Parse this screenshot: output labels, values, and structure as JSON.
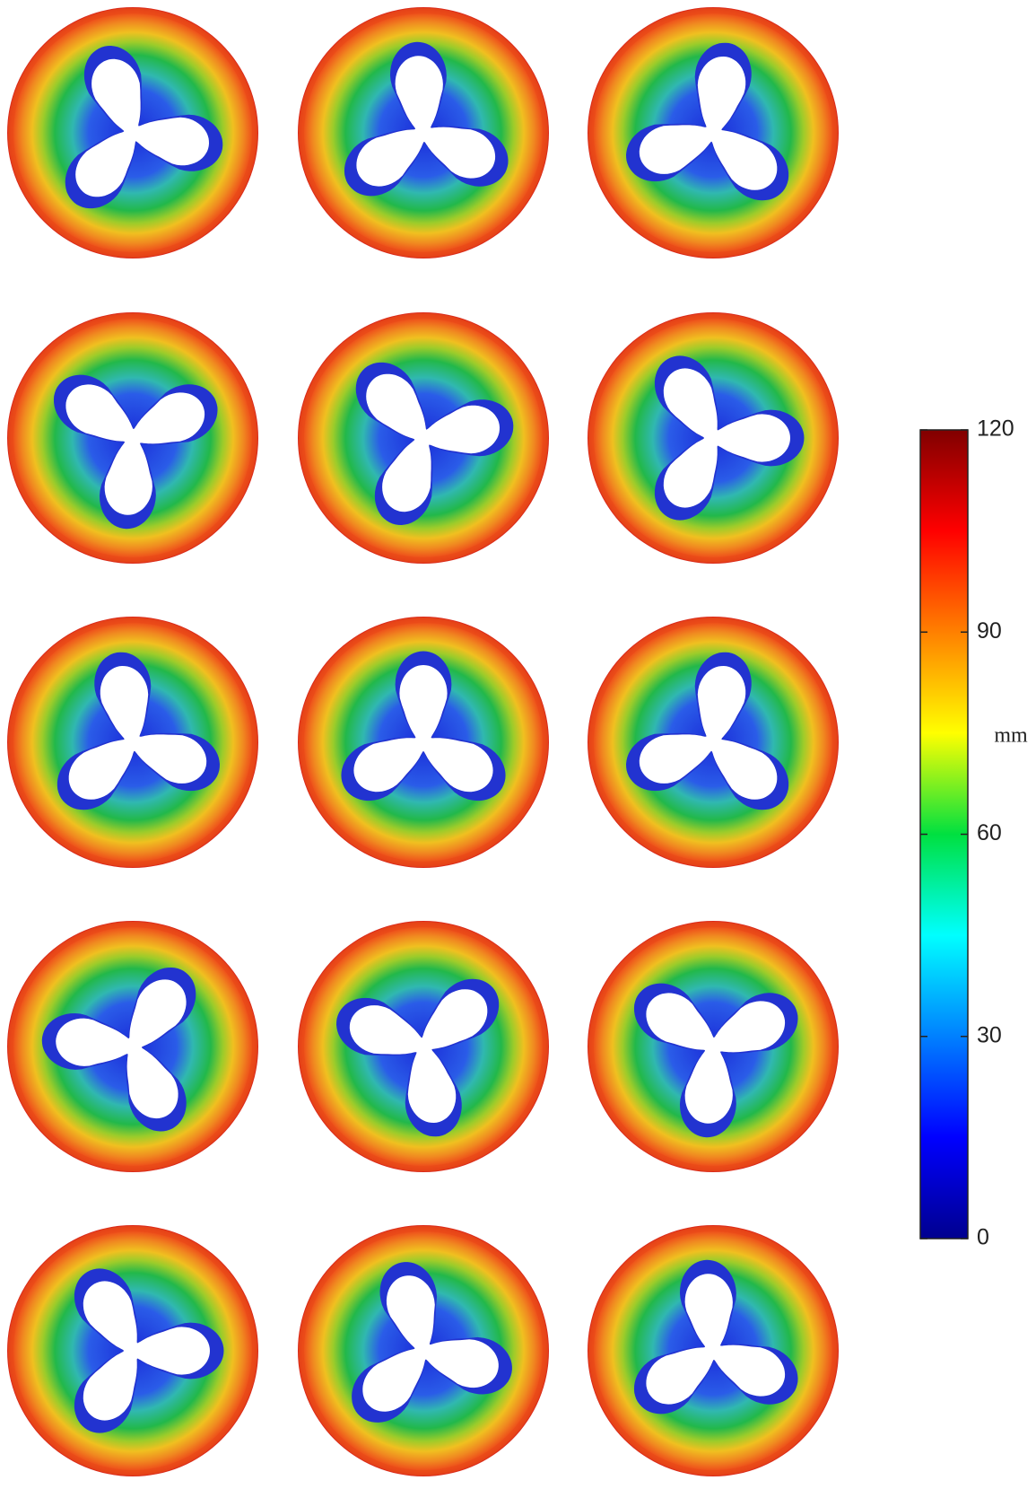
{
  "chart_data": {
    "type": "colorbar",
    "label": "mm",
    "ylim": [
      0,
      120
    ],
    "yticks": [
      0,
      30,
      60,
      90,
      120
    ],
    "colors": [
      "#00008f",
      "#0000ff",
      "#0080ff",
      "#00ffff",
      "#00e040",
      "#ffff00",
      "#ff8000",
      "#ff0000",
      "#800000"
    ]
  }
}
